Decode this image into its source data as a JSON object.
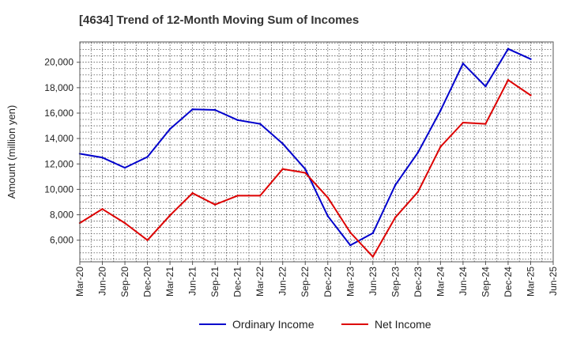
{
  "chart_data": {
    "type": "line",
    "title": "[4634]  Trend of 12-Month Moving Sum of Incomes",
    "xlabel": "",
    "ylabel": "Amount (million yen)",
    "ylim": [
      4300,
      21600
    ],
    "yticks": [
      6000,
      8000,
      10000,
      12000,
      14000,
      16000,
      18000,
      20000
    ],
    "ytick_labels": [
      "6,000",
      "8,000",
      "10,000",
      "12,000",
      "14,000",
      "16,000",
      "18,000",
      "20,000"
    ],
    "categories": [
      "Mar-20",
      "Jun-20",
      "Sep-20",
      "Dec-20",
      "Mar-21",
      "Jun-21",
      "Sep-21",
      "Dec-21",
      "Mar-22",
      "Jun-22",
      "Sep-22",
      "Dec-22",
      "Mar-23",
      "Jun-23",
      "Sep-23",
      "Dec-23",
      "Mar-24",
      "Jun-24",
      "Sep-24",
      "Dec-24",
      "Mar-25",
      "Jun-25"
    ],
    "grid": true,
    "legend_position": "bottom",
    "series": [
      {
        "name": "Ordinary Income",
        "color": "#0000cc",
        "values": [
          12800,
          12500,
          11700,
          12550,
          14750,
          16300,
          16250,
          15450,
          15150,
          13600,
          11600,
          7900,
          5600,
          6550,
          10350,
          12900,
          16200,
          19900,
          18100,
          21050,
          20250,
          null
        ]
      },
      {
        "name": "Net Income",
        "color": "#dd0000",
        "values": [
          7350,
          8450,
          7350,
          6000,
          7950,
          9700,
          8800,
          9500,
          9500,
          11600,
          11300,
          9350,
          6600,
          4700,
          7800,
          9800,
          13350,
          15250,
          15150,
          18600,
          17400,
          null
        ]
      }
    ]
  }
}
